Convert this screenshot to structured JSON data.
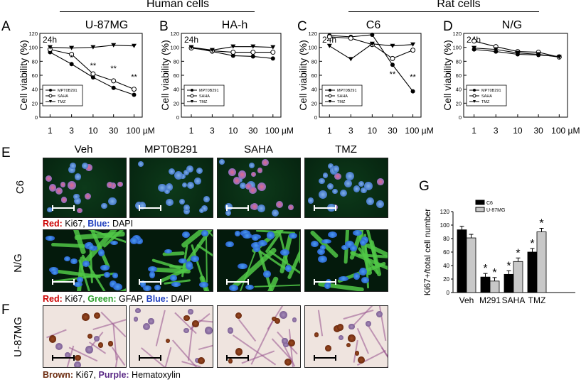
{
  "letters": {
    "A": "A",
    "B": "B",
    "C": "C",
    "D": "D",
    "E": "E",
    "F": "F",
    "G": "G"
  },
  "headers": {
    "human": "Human cells",
    "rat": "Rat cells"
  },
  "line_charts": [
    {
      "title": "U-87MG",
      "time": "24h"
    },
    {
      "title": "HA-h",
      "time": "24h"
    },
    {
      "title": "C6",
      "time": "24h"
    },
    {
      "title": "N/G",
      "time": "24h"
    }
  ],
  "axis": {
    "ylabel": "Cell viability (%)",
    "yticks": [
      "0",
      "20",
      "40",
      "60",
      "80",
      "100",
      "120"
    ],
    "xticks": [
      "1",
      "3",
      "10",
      "30",
      "100 µM"
    ],
    "legend": [
      "MPT0B291",
      "SAHA",
      "TMZ"
    ],
    "sig": "**"
  },
  "chart_data": [
    {
      "type": "line",
      "title": "U-87MG",
      "xlabel": "",
      "ylabel": "Cell viability (%)",
      "x": [
        "1",
        "3",
        "10",
        "30",
        "100"
      ],
      "ylim": [
        0,
        120
      ],
      "series": [
        {
          "name": "MPT0B291",
          "values": [
            93,
            76,
            57,
            42,
            32
          ]
        },
        {
          "name": "SAHA",
          "values": [
            97,
            90,
            62,
            52,
            40
          ]
        },
        {
          "name": "TMZ",
          "values": [
            100,
            99,
            100,
            103,
            102
          ]
        }
      ]
    },
    {
      "type": "line",
      "title": "HA-h",
      "xlabel": "",
      "ylabel": "Cell viability (%)",
      "x": [
        "1",
        "3",
        "10",
        "30",
        "100"
      ],
      "ylim": [
        0,
        120
      ],
      "series": [
        {
          "name": "MPT0B291",
          "values": [
            100,
            94,
            88,
            87,
            84
          ]
        },
        {
          "name": "SAHA",
          "values": [
            99,
            95,
            93,
            93,
            93
          ]
        },
        {
          "name": "TMZ",
          "values": [
            100,
            96,
            101,
            101,
            100
          ]
        }
      ]
    },
    {
      "type": "line",
      "title": "C6",
      "xlabel": "",
      "ylabel": "Cell viability (%)",
      "x": [
        "1",
        "3",
        "10",
        "30",
        "100"
      ],
      "ylim": [
        0,
        120
      ],
      "series": [
        {
          "name": "MPT0B291",
          "values": [
            117,
            115,
            118,
            75,
            37
          ]
        },
        {
          "name": "SAHA",
          "values": [
            115,
            113,
            104,
            84,
            96
          ]
        },
        {
          "name": "TMZ",
          "values": [
            102,
            83,
            105,
            102,
            104
          ]
        }
      ]
    },
    {
      "type": "line",
      "title": "N/G",
      "xlabel": "",
      "ylabel": "Cell viability (%)",
      "x": [
        "1",
        "3",
        "10",
        "30",
        "100"
      ],
      "ylim": [
        0,
        120
      ],
      "series": [
        {
          "name": "MPT0B291",
          "values": [
            97,
            94,
            90,
            89,
            87
          ]
        },
        {
          "name": "SAHA",
          "values": [
            109,
            101,
            94,
            93,
            86
          ]
        },
        {
          "name": "TMZ",
          "values": [
            99,
            97,
            92,
            90,
            86
          ]
        }
      ]
    },
    {
      "type": "bar",
      "title": "",
      "xlabel": "",
      "ylabel": "Ki67+/total cell number",
      "categories": [
        "Veh",
        "M291",
        "SAHA",
        "TMZ"
      ],
      "ylim": [
        0,
        120
      ],
      "yticks": [
        "0",
        "20",
        "40",
        "60",
        "80",
        "100",
        "120"
      ],
      "series": [
        {
          "name": "C6",
          "values": [
            93,
            23,
            27,
            60
          ]
        },
        {
          "name": "U-87MG",
          "values": [
            81,
            17,
            46,
            90
          ]
        }
      ],
      "sig": "*"
    }
  ],
  "micro": {
    "columns": [
      "Veh",
      "MPT0B291",
      "SAHA",
      "TMZ"
    ],
    "rows": [
      "C6",
      "N/G",
      "U-87MG"
    ],
    "captions": {
      "c6": {
        "red": "Red:",
        "rest1": " Ki67, ",
        "blue": "Blue:",
        "rest2": " DAPI"
      },
      "ng": {
        "red": "Red:",
        "rest1": " Ki67, ",
        "green": "Green:",
        "rest2": " GFAP, ",
        "blue": "Blue:",
        "rest3": " DAPI"
      },
      "u87": {
        "brown": "Brown:",
        "rest1": " Ki67, ",
        "purple": "Purple:",
        "rest2": " Hematoxylin"
      }
    }
  },
  "colors": {
    "red": "#cc0000",
    "green": "#2ca02c",
    "blue": "#1f3fbf",
    "brown": "#6b2a0e",
    "purple": "#5b2a86"
  }
}
